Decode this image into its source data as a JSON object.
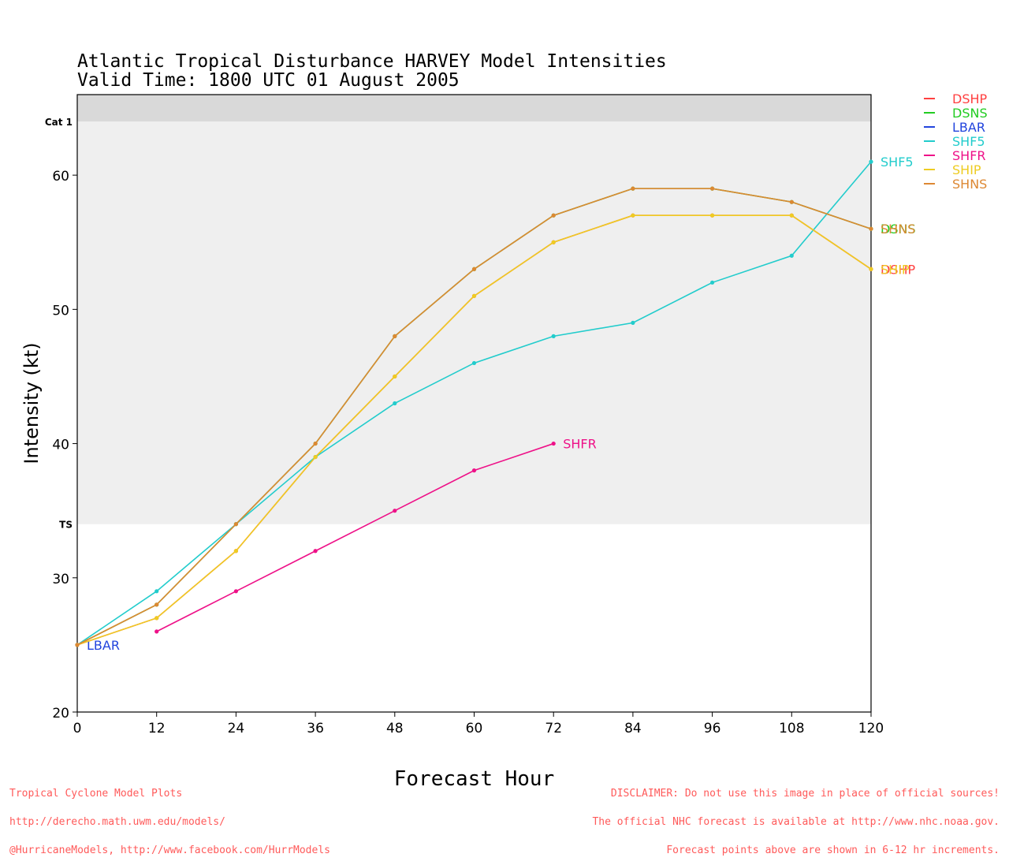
{
  "chart_data": {
    "type": "line",
    "title": "Atlantic Tropical Disturbance HARVEY Model Intensities",
    "subtitle": "Valid Time: 1800 UTC 01 August 2005",
    "xlabel": "Forecast Hour",
    "ylabel": "Intensity (kt)",
    "xlim": [
      0,
      120
    ],
    "ylim": [
      20,
      66
    ],
    "xticks": [
      0,
      12,
      24,
      36,
      48,
      60,
      72,
      84,
      96,
      108,
      120
    ],
    "yticks": [
      20,
      30,
      40,
      50,
      60
    ],
    "bands": [
      {
        "label": "TS",
        "from": 34,
        "to": 64,
        "color": "#efefef"
      },
      {
        "label": "Cat 1",
        "from": 64,
        "to": 66,
        "color": "#d9d9d9"
      }
    ],
    "legend_position": "right",
    "series": [
      {
        "name": "DSHP",
        "color": "#ff4040",
        "x": [
          0,
          12,
          24,
          36,
          48,
          60,
          72,
          84,
          96,
          108,
          120
        ],
        "y": [
          25,
          27,
          32,
          39,
          45,
          51,
          55,
          57,
          57,
          57,
          53
        ],
        "end_label": "DSHP"
      },
      {
        "name": "DSNS",
        "color": "#22cc22",
        "x": [
          0,
          12,
          24,
          36,
          48,
          60,
          72,
          84,
          96,
          108,
          120
        ],
        "y": [
          25,
          28,
          34,
          40,
          48,
          53,
          57,
          59,
          59,
          58,
          56
        ],
        "end_label": "DSNS"
      },
      {
        "name": "LBAR",
        "color": "#2244dd",
        "x": [
          0
        ],
        "y": [
          25
        ],
        "end_label": "LBAR"
      },
      {
        "name": "SHF5",
        "color": "#22cccc",
        "x": [
          0,
          12,
          24,
          36,
          48,
          60,
          72,
          84,
          96,
          108,
          120
        ],
        "y": [
          25,
          29,
          34,
          39,
          43,
          46,
          48,
          49,
          52,
          54,
          61
        ],
        "end_label": "SHF5"
      },
      {
        "name": "SHFR",
        "color": "#ee1188",
        "x": [
          12,
          24,
          36,
          48,
          60,
          72
        ],
        "y": [
          26,
          29,
          32,
          35,
          38,
          40
        ],
        "end_label": "SHFR"
      },
      {
        "name": "SHIP",
        "color": "#eecc22",
        "x": [
          0,
          12,
          24,
          36,
          48,
          60,
          72,
          84,
          96,
          108,
          120
        ],
        "y": [
          25,
          27,
          32,
          39,
          45,
          51,
          55,
          57,
          57,
          57,
          53
        ],
        "end_label": "SHIP"
      },
      {
        "name": "SHNS",
        "color": "#dd8833",
        "x": [
          0,
          12,
          24,
          36,
          48,
          60,
          72,
          84,
          96,
          108,
          120
        ],
        "y": [
          25,
          28,
          34,
          40,
          48,
          53,
          57,
          59,
          59,
          58,
          56
        ],
        "end_label": "SHNS"
      }
    ]
  },
  "footer": {
    "left_lines": [
      "Tropical Cyclone Model Plots",
      "http://derecho.math.uwm.edu/models/",
      "@HurricaneModels, http://www.facebook.com/HurrModels"
    ],
    "right_lines": [
      "DISCLAIMER: Do not use this image in place of official sources!",
      "The official NHC forecast is available at http://www.nhc.noaa.gov.",
      "Forecast points above are shown in 6-12 hr increments."
    ]
  }
}
